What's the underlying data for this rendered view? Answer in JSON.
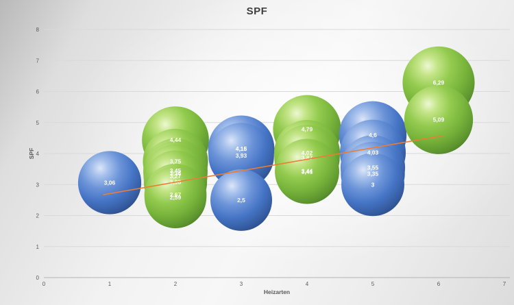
{
  "chart_data": {
    "type": "bubble",
    "title": "SPF",
    "xlabel": "Heizarten",
    "ylabel": "SPF",
    "xlim": [
      0,
      7
    ],
    "ylim": [
      0,
      8
    ],
    "x_ticks": [
      "0",
      "1",
      "2",
      "3",
      "4",
      "5",
      "6",
      "7"
    ],
    "y_ticks": [
      "0",
      "1",
      "2",
      "3",
      "4",
      "5",
      "6",
      "7",
      "8"
    ],
    "grid": true,
    "legend_position": "none",
    "colors": {
      "blue": "#4472C4",
      "green": "#70AD47",
      "trendline": "#ED7D31",
      "gridline": "#d9d9d9",
      "axis_line": "#b3b3b3",
      "axis_text": "#595959"
    },
    "clusters": [
      {
        "x": 1,
        "color": "blue",
        "points": [
          {
            "value": 3.06,
            "label": "3,06"
          }
        ]
      },
      {
        "x": 2,
        "color": "green",
        "points": [
          {
            "value": 4.44,
            "label": "4,44"
          },
          {
            "value": 3.75,
            "label": "3,75"
          },
          {
            "value": 3.45,
            "label": "3,45"
          },
          {
            "value": 3.36,
            "label": "3,36"
          },
          {
            "value": 3.27,
            "label": "3,27"
          },
          {
            "value": 3.08,
            "label": "3,08"
          },
          {
            "value": 2.67,
            "label": "2,67"
          },
          {
            "value": 2.59,
            "label": "2,59"
          }
        ]
      },
      {
        "x": 3,
        "color": "blue",
        "points": [
          {
            "value": 4.16,
            "label": "4,16"
          },
          {
            "value": 4.15,
            "label": "4,15"
          },
          {
            "value": 3.93,
            "label": "3,93"
          },
          {
            "value": 2.5,
            "label": "2,5"
          }
        ]
      },
      {
        "x": 4,
        "color": "green",
        "points": [
          {
            "value": 4.79,
            "label": "4,79"
          },
          {
            "value": 4.02,
            "label": "4,02"
          },
          {
            "value": 3.87,
            "label": "3,87"
          },
          {
            "value": 3.44,
            "label": "3,44"
          },
          {
            "value": 3.41,
            "label": "3,41"
          }
        ]
      },
      {
        "x": 5,
        "color": "blue",
        "points": [
          {
            "value": 4.6,
            "label": "4,6"
          },
          {
            "value": 4.03,
            "label": "4,03"
          },
          {
            "value": 3.55,
            "label": "3,55"
          },
          {
            "value": 3.35,
            "label": "3,35"
          },
          {
            "value": 3.0,
            "label": "3"
          }
        ]
      },
      {
        "x": 6,
        "color": "green",
        "points": [
          {
            "value": 6.29,
            "label": "6,29"
          },
          {
            "value": 5.09,
            "label": "5,09"
          }
        ]
      }
    ],
    "trendline": {
      "x1": 0.9,
      "y1": 2.67,
      "x2": 6.05,
      "y2": 4.57,
      "color": "#ED7D31"
    }
  }
}
